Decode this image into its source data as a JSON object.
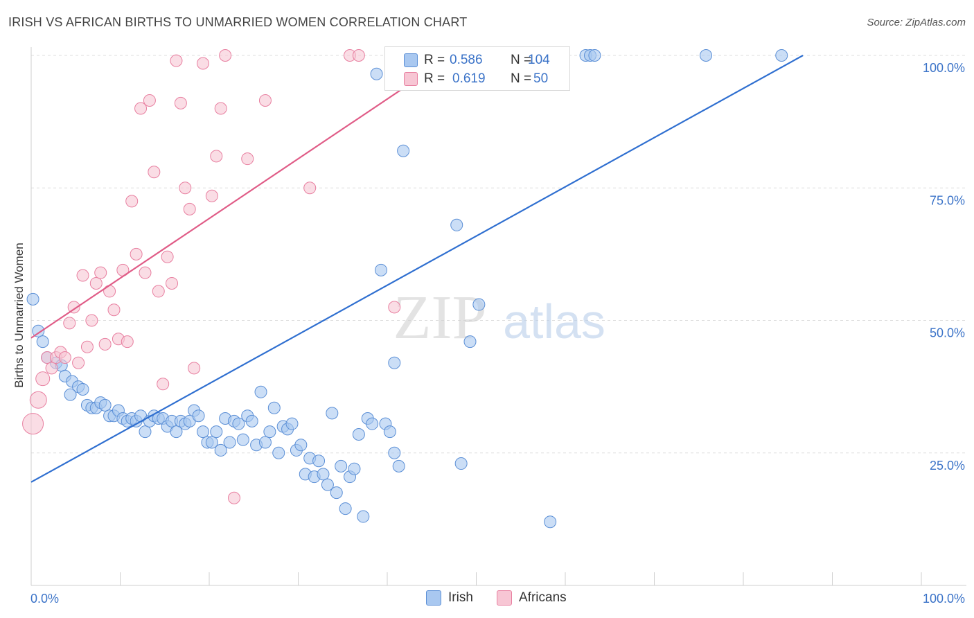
{
  "chart_data": {
    "type": "scatter",
    "title": "IRISH VS AFRICAN BIRTHS TO UNMARRIED WOMEN CORRELATION CHART",
    "source": "Source: ZipAtlas.com",
    "xlabel": "",
    "ylabel": "Births to Unmarried Women",
    "xlim": [
      0,
      100
    ],
    "ylim": [
      0,
      100
    ],
    "x_tick_labels": {
      "left": "0.0%",
      "right": "100.0%"
    },
    "y_ticks": [
      {
        "value": 25,
        "label": "25.0%"
      },
      {
        "value": 50,
        "label": "50.0%"
      },
      {
        "value": 75,
        "label": "75.0%"
      },
      {
        "value": 100,
        "label": "100.0%"
      }
    ],
    "grid": true,
    "watermark": "ZIPatlas",
    "stats": {
      "r_label": "R =",
      "n_label": "N =",
      "rows": [
        {
          "series": "Irish",
          "r": "0.586",
          "n": "104"
        },
        {
          "series": "Africans",
          "r": "0.619",
          "n": "50"
        }
      ]
    },
    "series": [
      {
        "name": "Irish",
        "color": "#a9c8f0",
        "edge": "#5b8fd6",
        "line_color": "#2f6fd0",
        "trend": {
          "x1": 0,
          "y1": 19.5,
          "x2": 86.7,
          "y2": 100
        },
        "points": [
          [
            0.2,
            54
          ],
          [
            0.8,
            48
          ],
          [
            1.3,
            46
          ],
          [
            1.8,
            43
          ],
          [
            2.8,
            42
          ],
          [
            3.4,
            41.5
          ],
          [
            3.8,
            39.5
          ],
          [
            4.6,
            38.5
          ],
          [
            5.3,
            37.5
          ],
          [
            5.8,
            37
          ],
          [
            4.4,
            36
          ],
          [
            6.3,
            34
          ],
          [
            6.8,
            33.5
          ],
          [
            7.3,
            33.5
          ],
          [
            7.8,
            34.5
          ],
          [
            8.3,
            34
          ],
          [
            8.8,
            32
          ],
          [
            9.3,
            32
          ],
          [
            9.8,
            33
          ],
          [
            10.3,
            31.5
          ],
          [
            10.8,
            31
          ],
          [
            11.3,
            31.5
          ],
          [
            11.8,
            31
          ],
          [
            12.3,
            32
          ],
          [
            12.8,
            29
          ],
          [
            13.3,
            31
          ],
          [
            13.8,
            32
          ],
          [
            14.3,
            31.5
          ],
          [
            14.8,
            31.5
          ],
          [
            15.3,
            30
          ],
          [
            15.8,
            31
          ],
          [
            16.3,
            29
          ],
          [
            16.8,
            31
          ],
          [
            17.3,
            30.5
          ],
          [
            17.8,
            31
          ],
          [
            18.3,
            33
          ],
          [
            18.8,
            32
          ],
          [
            19.3,
            29
          ],
          [
            19.8,
            27
          ],
          [
            20.3,
            27
          ],
          [
            20.8,
            29
          ],
          [
            21.3,
            25.5
          ],
          [
            21.8,
            31.5
          ],
          [
            22.3,
            27
          ],
          [
            22.8,
            31
          ],
          [
            23.3,
            30.5
          ],
          [
            23.8,
            27.5
          ],
          [
            24.3,
            32
          ],
          [
            24.8,
            31
          ],
          [
            25.3,
            26.5
          ],
          [
            25.8,
            36.5
          ],
          [
            26.3,
            27
          ],
          [
            26.8,
            29
          ],
          [
            27.3,
            33.5
          ],
          [
            27.8,
            25
          ],
          [
            28.3,
            30
          ],
          [
            28.8,
            29.5
          ],
          [
            29.3,
            30.5
          ],
          [
            29.8,
            25.5
          ],
          [
            30.3,
            26.5
          ],
          [
            30.8,
            21
          ],
          [
            31.3,
            24
          ],
          [
            31.8,
            20.5
          ],
          [
            32.3,
            23.5
          ],
          [
            32.8,
            21
          ],
          [
            33.3,
            19
          ],
          [
            33.8,
            32.5
          ],
          [
            34.3,
            17.5
          ],
          [
            34.8,
            22.5
          ],
          [
            35.3,
            14.5
          ],
          [
            35.8,
            20.5
          ],
          [
            36.3,
            22
          ],
          [
            36.8,
            28.5
          ],
          [
            37.3,
            13
          ],
          [
            37.8,
            31.5
          ],
          [
            38.3,
            30.5
          ],
          [
            38.8,
            96.5
          ],
          [
            39.3,
            59.5
          ],
          [
            39.8,
            30.5
          ],
          [
            40.3,
            29
          ],
          [
            40.8,
            25
          ],
          [
            41.3,
            22.5
          ],
          [
            41.8,
            82
          ],
          [
            42.3,
            100
          ],
          [
            43.3,
            100
          ],
          [
            44.3,
            100
          ],
          [
            45.3,
            100
          ],
          [
            47.3,
            100
          ],
          [
            48.3,
            100
          ],
          [
            49.3,
            100
          ],
          [
            49.8,
            100
          ],
          [
            47.8,
            68
          ],
          [
            48.3,
            23
          ],
          [
            49.3,
            46
          ],
          [
            50.3,
            53
          ],
          [
            52.8,
            100
          ],
          [
            55.8,
            100
          ],
          [
            58.3,
            12
          ],
          [
            62.3,
            100
          ],
          [
            62.8,
            100
          ],
          [
            63.3,
            100
          ],
          [
            75.8,
            100
          ],
          [
            84.3,
            100
          ],
          [
            40.8,
            42
          ]
        ]
      },
      {
        "name": "Africans",
        "color": "#f7c6d4",
        "edge": "#e87fa0",
        "line_color": "#e05c87",
        "trend": {
          "x1": 0,
          "y1": 46.7,
          "x2": 47.3,
          "y2": 100
        },
        "points": [
          [
            0.2,
            30.5
          ],
          [
            0.8,
            35
          ],
          [
            1.3,
            39
          ],
          [
            1.8,
            43
          ],
          [
            2.3,
            41
          ],
          [
            2.8,
            43
          ],
          [
            3.3,
            44
          ],
          [
            3.8,
            43
          ],
          [
            4.3,
            49.5
          ],
          [
            4.8,
            52.5
          ],
          [
            5.3,
            42
          ],
          [
            5.8,
            58.5
          ],
          [
            6.3,
            45
          ],
          [
            6.8,
            50
          ],
          [
            7.3,
            57
          ],
          [
            7.8,
            59
          ],
          [
            8.3,
            45.5
          ],
          [
            8.8,
            55.5
          ],
          [
            9.3,
            52
          ],
          [
            9.8,
            46.5
          ],
          [
            10.3,
            59.5
          ],
          [
            10.8,
            46
          ],
          [
            11.3,
            72.5
          ],
          [
            11.8,
            62.5
          ],
          [
            12.3,
            90
          ],
          [
            12.8,
            59
          ],
          [
            13.3,
            91.5
          ],
          [
            13.8,
            78
          ],
          [
            14.3,
            55.5
          ],
          [
            14.8,
            38
          ],
          [
            15.3,
            62
          ],
          [
            15.8,
            57
          ],
          [
            16.3,
            99
          ],
          [
            16.8,
            91
          ],
          [
            17.3,
            75
          ],
          [
            17.8,
            71
          ],
          [
            18.3,
            41
          ],
          [
            19.3,
            98.5
          ],
          [
            20.3,
            73.5
          ],
          [
            20.8,
            81
          ],
          [
            21.3,
            90
          ],
          [
            21.8,
            100
          ],
          [
            22.8,
            16.5
          ],
          [
            24.3,
            80.5
          ],
          [
            26.3,
            91.5
          ],
          [
            31.3,
            75
          ],
          [
            35.8,
            100
          ],
          [
            40.8,
            52.5
          ],
          [
            47.3,
            100
          ],
          [
            36.8,
            100
          ]
        ]
      }
    ]
  }
}
